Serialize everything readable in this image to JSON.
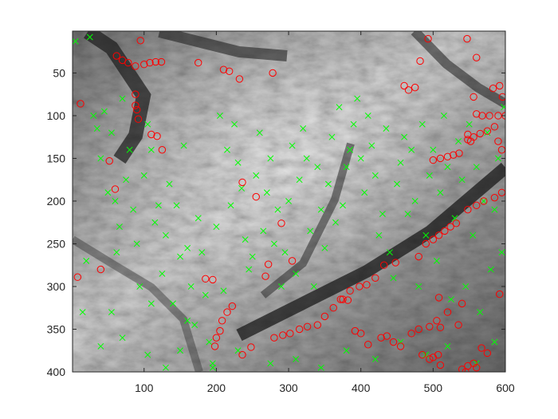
{
  "chart_data": {
    "type": "scatter",
    "title": "",
    "xlabel": "",
    "ylabel": "",
    "xlim": [
      1,
      600
    ],
    "ylim": [
      400,
      1
    ],
    "y_reversed": true,
    "grid": false,
    "legend": "none",
    "background": "grayscale elevation image (terrain hillshade)",
    "x_ticks": [
      100,
      200,
      300,
      400,
      500,
      600
    ],
    "y_ticks": [
      50,
      100,
      150,
      200,
      250,
      300,
      350,
      400
    ],
    "series": [
      {
        "marker": "x",
        "color": "#00ff00",
        "points": [
          [
            5,
            13
          ],
          [
            25,
            8
          ],
          [
            30,
            100
          ],
          [
            35,
            115
          ],
          [
            40,
            150
          ],
          [
            45,
            95
          ],
          [
            50,
            190
          ],
          [
            55,
            120
          ],
          [
            60,
            200
          ],
          [
            62,
            260
          ],
          [
            66,
            230
          ],
          [
            70,
            80
          ],
          [
            75,
            175
          ],
          [
            80,
            140
          ],
          [
            85,
            210
          ],
          [
            90,
            250
          ],
          [
            94,
            300
          ],
          [
            100,
            170
          ],
          [
            105,
            110
          ],
          [
            110,
            140
          ],
          [
            115,
            225
          ],
          [
            120,
            205
          ],
          [
            125,
            285
          ],
          [
            130,
            240
          ],
          [
            135,
            180
          ],
          [
            140,
            320
          ],
          [
            145,
            205
          ],
          [
            150,
            265
          ],
          [
            155,
            135
          ],
          [
            160,
            255
          ],
          [
            165,
            300
          ],
          [
            170,
            345
          ],
          [
            175,
            220
          ],
          [
            180,
            260
          ],
          [
            185,
            310
          ],
          [
            190,
            365
          ],
          [
            195,
            390
          ],
          [
            200,
            230
          ],
          [
            205,
            100
          ],
          [
            210,
            305
          ],
          [
            215,
            140
          ],
          [
            220,
            205
          ],
          [
            225,
            110
          ],
          [
            230,
            155
          ],
          [
            235,
            185
          ],
          [
            240,
            245
          ],
          [
            245,
            280
          ],
          [
            250,
            265
          ],
          [
            255,
            170
          ],
          [
            260,
            120
          ],
          [
            265,
            235
          ],
          [
            270,
            190
          ],
          [
            275,
            150
          ],
          [
            280,
            250
          ],
          [
            285,
            210
          ],
          [
            290,
            300
          ],
          [
            295,
            260
          ],
          [
            300,
            200
          ],
          [
            305,
            135
          ],
          [
            310,
            285
          ],
          [
            315,
            175
          ],
          [
            320,
            115
          ],
          [
            325,
            150
          ],
          [
            330,
            235
          ],
          [
            335,
            300
          ],
          [
            340,
            160
          ],
          [
            345,
            210
          ],
          [
            350,
            255
          ],
          [
            355,
            180
          ],
          [
            360,
            125
          ],
          [
            365,
            225
          ],
          [
            370,
            90
          ],
          [
            375,
            205
          ],
          [
            380,
            160
          ],
          [
            385,
            140
          ],
          [
            390,
            110
          ],
          [
            395,
            80
          ],
          [
            400,
            150
          ],
          [
            405,
            190
          ],
          [
            410,
            100
          ],
          [
            415,
            135
          ],
          [
            420,
            170
          ],
          [
            425,
            240
          ],
          [
            430,
            215
          ],
          [
            435,
            115
          ],
          [
            440,
            260
          ],
          [
            445,
            290
          ],
          [
            450,
            180
          ],
          [
            455,
            155
          ],
          [
            460,
            125
          ],
          [
            465,
            215
          ],
          [
            470,
            140
          ],
          [
            475,
            200
          ],
          [
            480,
            300
          ],
          [
            485,
            110
          ],
          [
            490,
            240
          ],
          [
            495,
            170
          ],
          [
            500,
            140
          ],
          [
            505,
            270
          ],
          [
            510,
            190
          ],
          [
            515,
            100
          ],
          [
            520,
            160
          ],
          [
            525,
            315
          ],
          [
            530,
            220
          ],
          [
            535,
            130
          ],
          [
            540,
            175
          ],
          [
            545,
            300
          ],
          [
            550,
            110
          ],
          [
            555,
            240
          ],
          [
            560,
            160
          ],
          [
            565,
            330
          ],
          [
            570,
            200
          ],
          [
            575,
            120
          ],
          [
            580,
            280
          ],
          [
            585,
            210
          ],
          [
            590,
            150
          ],
          [
            595,
            260
          ],
          [
            598,
            90
          ],
          [
            15,
            330
          ],
          [
            40,
            370
          ],
          [
            70,
            360
          ],
          [
            105,
            380
          ],
          [
            130,
            395
          ],
          [
            160,
            340
          ],
          [
            195,
            395
          ],
          [
            230,
            375
          ],
          [
            275,
            390
          ],
          [
            310,
            385
          ],
          [
            345,
            395
          ],
          [
            380,
            375
          ],
          [
            420,
            385
          ],
          [
            455,
            365
          ],
          [
            490,
            380
          ],
          [
            520,
            370
          ],
          [
            560,
            390
          ],
          [
            585,
            365
          ],
          [
            20,
            270
          ],
          [
            55,
            330
          ],
          [
            110,
            320
          ],
          [
            150,
            375
          ]
        ]
      },
      {
        "marker": "o",
        "color": "#ff0000",
        "points": [
          [
            62,
            30
          ],
          [
            70,
            35
          ],
          [
            78,
            38
          ],
          [
            88,
            42
          ],
          [
            100,
            40
          ],
          [
            108,
            38
          ],
          [
            116,
            37
          ],
          [
            124,
            37
          ],
          [
            175,
            38
          ],
          [
            210,
            46
          ],
          [
            218,
            48
          ],
          [
            232,
            57
          ],
          [
            278,
            50
          ],
          [
            95,
            12
          ],
          [
            12,
            86
          ],
          [
            88,
            75
          ],
          [
            88,
            88
          ],
          [
            90,
            93
          ],
          [
            92,
            104
          ],
          [
            110,
            122
          ],
          [
            118,
            124
          ],
          [
            125,
            140
          ],
          [
            52,
            153
          ],
          [
            60,
            186
          ],
          [
            40,
            280
          ],
          [
            8,
            289
          ],
          [
            185,
            291
          ],
          [
            195,
            292
          ],
          [
            236,
            178
          ],
          [
            255,
            195
          ],
          [
            268,
            288
          ],
          [
            272,
            274
          ],
          [
            290,
            226
          ],
          [
            305,
            270
          ],
          [
            208,
            340
          ],
          [
            215,
            330
          ],
          [
            222,
            323
          ],
          [
            205,
            352
          ],
          [
            200,
            360
          ],
          [
            198,
            370
          ],
          [
            236,
            380
          ],
          [
            248,
            371
          ],
          [
            280,
            360
          ],
          [
            292,
            357
          ],
          [
            302,
            355
          ],
          [
            315,
            350
          ],
          [
            326,
            347
          ],
          [
            340,
            345
          ],
          [
            350,
            335
          ],
          [
            362,
            325
          ],
          [
            372,
            315
          ],
          [
            385,
            305
          ],
          [
            398,
            300
          ],
          [
            408,
            298
          ],
          [
            420,
            290
          ],
          [
            432,
            275
          ],
          [
            448,
            272
          ],
          [
            392,
            352
          ],
          [
            400,
            355
          ],
          [
            410,
            368
          ],
          [
            428,
            360
          ],
          [
            436,
            358
          ],
          [
            470,
            355
          ],
          [
            480,
            350
          ],
          [
            495,
            347
          ],
          [
            505,
            340
          ],
          [
            520,
            330
          ],
          [
            540,
            320
          ],
          [
            445,
            365
          ],
          [
            455,
            370
          ],
          [
            485,
            380
          ],
          [
            500,
            383
          ],
          [
            510,
            392
          ],
          [
            540,
            397
          ],
          [
            548,
            393
          ],
          [
            556,
            390
          ],
          [
            567,
            372
          ],
          [
            575,
            378
          ],
          [
            480,
            265
          ],
          [
            490,
            250
          ],
          [
            500,
            245
          ],
          [
            508,
            240
          ],
          [
            516,
            235
          ],
          [
            524,
            230
          ],
          [
            532,
            226
          ],
          [
            548,
            210
          ],
          [
            560,
            205
          ],
          [
            570,
            200
          ],
          [
            585,
            196
          ],
          [
            595,
            190
          ],
          [
            500,
            152
          ],
          [
            510,
            150
          ],
          [
            520,
            148
          ],
          [
            528,
            146
          ],
          [
            536,
            144
          ],
          [
            548,
            128
          ],
          [
            556,
            125
          ],
          [
            565,
            121
          ],
          [
            575,
            118
          ],
          [
            585,
            113
          ],
          [
            590,
            100
          ],
          [
            560,
            98
          ],
          [
            568,
            100
          ],
          [
            578,
            100
          ],
          [
            548,
            122
          ],
          [
            552,
            130
          ],
          [
            556,
            78
          ],
          [
            466,
            70
          ],
          [
            460,
            65
          ],
          [
            475,
            67
          ],
          [
            482,
            36
          ],
          [
            493,
            10
          ],
          [
            547,
            10
          ],
          [
            560,
            32
          ],
          [
            583,
            68
          ],
          [
            592,
            65
          ],
          [
            596,
            78
          ],
          [
            600,
            100
          ],
          [
            590,
            130
          ],
          [
            595,
            140
          ],
          [
            508,
            313
          ],
          [
            510,
            348
          ],
          [
            535,
            345
          ],
          [
            592,
            309
          ],
          [
            495,
            385
          ],
          [
            507,
            380
          ],
          [
            545,
            400
          ],
          [
            560,
            395
          ],
          [
            375,
            315
          ],
          [
            382,
            316
          ]
        ]
      }
    ]
  }
}
